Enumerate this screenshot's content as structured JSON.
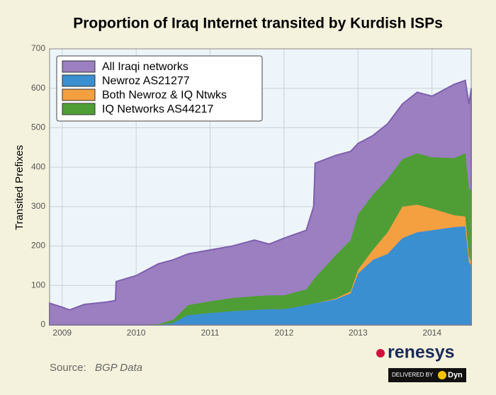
{
  "chart_data": {
    "type": "area",
    "title": "Proportion of Iraq Internet transited by Kurdish ISPs",
    "ylabel": "Transited Prefixes",
    "x": [
      2008.83,
      2009.0,
      2009.1,
      2009.3,
      2009.6,
      2009.72,
      2009.73,
      2010.0,
      2010.3,
      2010.5,
      2010.7,
      2011.0,
      2011.3,
      2011.6,
      2011.8,
      2012.0,
      2012.3,
      2012.4,
      2012.42,
      2012.7,
      2012.9,
      2013.0,
      2013.2,
      2013.4,
      2013.6,
      2013.8,
      2014.0,
      2014.3,
      2014.45,
      2014.5,
      2014.53
    ],
    "series": [
      {
        "name": "All Iraqi networks",
        "color": "#9b7fc0",
        "stacked": false,
        "values": [
          55,
          45,
          38,
          52,
          58,
          62,
          110,
          125,
          155,
          165,
          180,
          190,
          200,
          215,
          205,
          220,
          240,
          300,
          410,
          430,
          440,
          460,
          480,
          510,
          560,
          590,
          580,
          610,
          620,
          560,
          600
        ]
      },
      {
        "name": "Newroz AS21277",
        "color": "#3a8fd0",
        "stacked": true,
        "values": [
          0,
          0,
          0,
          0,
          0,
          0,
          0,
          0,
          0,
          5,
          25,
          30,
          35,
          38,
          40,
          40,
          50,
          55,
          55,
          65,
          80,
          130,
          165,
          180,
          220,
          235,
          240,
          248,
          250,
          160,
          150
        ]
      },
      {
        "name": "Both Newroz & IQ Ntwks",
        "color": "#f5a040",
        "stacked": true,
        "values": [
          0,
          0,
          0,
          0,
          0,
          0,
          0,
          0,
          0,
          0,
          0,
          0,
          0,
          0,
          0,
          0,
          0,
          0,
          0,
          2,
          5,
          10,
          25,
          55,
          80,
          70,
          55,
          30,
          25,
          15,
          10
        ]
      },
      {
        "name": "IQ Networks AS44217",
        "color": "#4e9e35",
        "stacked": true,
        "values": [
          0,
          0,
          0,
          0,
          0,
          0,
          0,
          0,
          2,
          8,
          25,
          30,
          33,
          35,
          35,
          35,
          40,
          60,
          65,
          110,
          130,
          140,
          140,
          135,
          120,
          130,
          130,
          145,
          160,
          170,
          180
        ]
      }
    ],
    "xlim": [
      2008.83,
      2014.53
    ],
    "xticks": [
      2009,
      2010,
      2011,
      2012,
      2013,
      2014
    ],
    "ylim": [
      0,
      700
    ],
    "yticks": [
      0,
      100,
      200,
      300,
      400,
      500,
      600,
      700
    ],
    "grid": true,
    "legend": "upper left"
  },
  "footer": {
    "source_label": "Source:",
    "source": "BGP Data",
    "logo": "renesys",
    "delivered": "DELIVERED BY",
    "partner": "Dyn"
  }
}
